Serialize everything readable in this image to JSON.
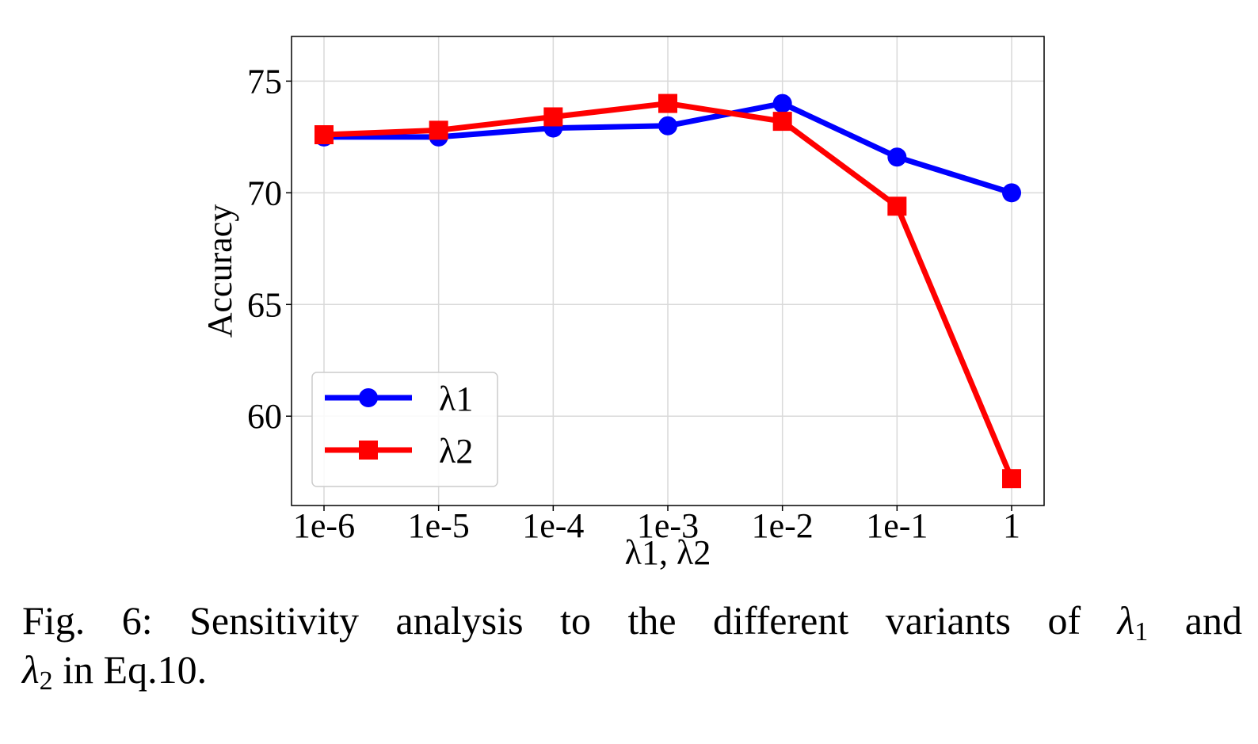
{
  "chart_data": {
    "type": "line",
    "title": "",
    "xlabel": "λ1, λ2",
    "ylabel": "Accuracy",
    "categories": [
      "1e-6",
      "1e-5",
      "1e-4",
      "1e-3",
      "1e-2",
      "1e-1",
      "1"
    ],
    "ylim": [
      56,
      77
    ],
    "yticks": [
      60,
      65,
      70,
      75
    ],
    "grid": true,
    "legend_position": "bottom-left",
    "series": [
      {
        "name": "λ1",
        "marker": "circle",
        "color": "#0000ff",
        "values": [
          72.5,
          72.5,
          72.9,
          73.0,
          74.0,
          71.6,
          70.0
        ]
      },
      {
        "name": "λ2",
        "marker": "square",
        "color": "#ff0000",
        "values": [
          72.6,
          72.8,
          73.4,
          74.0,
          73.2,
          69.4,
          57.2
        ]
      }
    ]
  },
  "caption": {
    "prefix": "Fig. 6: Sensitivity analysis to the different variants of ",
    "sym1": "λ",
    "sub1": "1",
    "mid": " and",
    "sym2": "λ",
    "sub2": "2",
    "suffix": " in Eq.10."
  }
}
